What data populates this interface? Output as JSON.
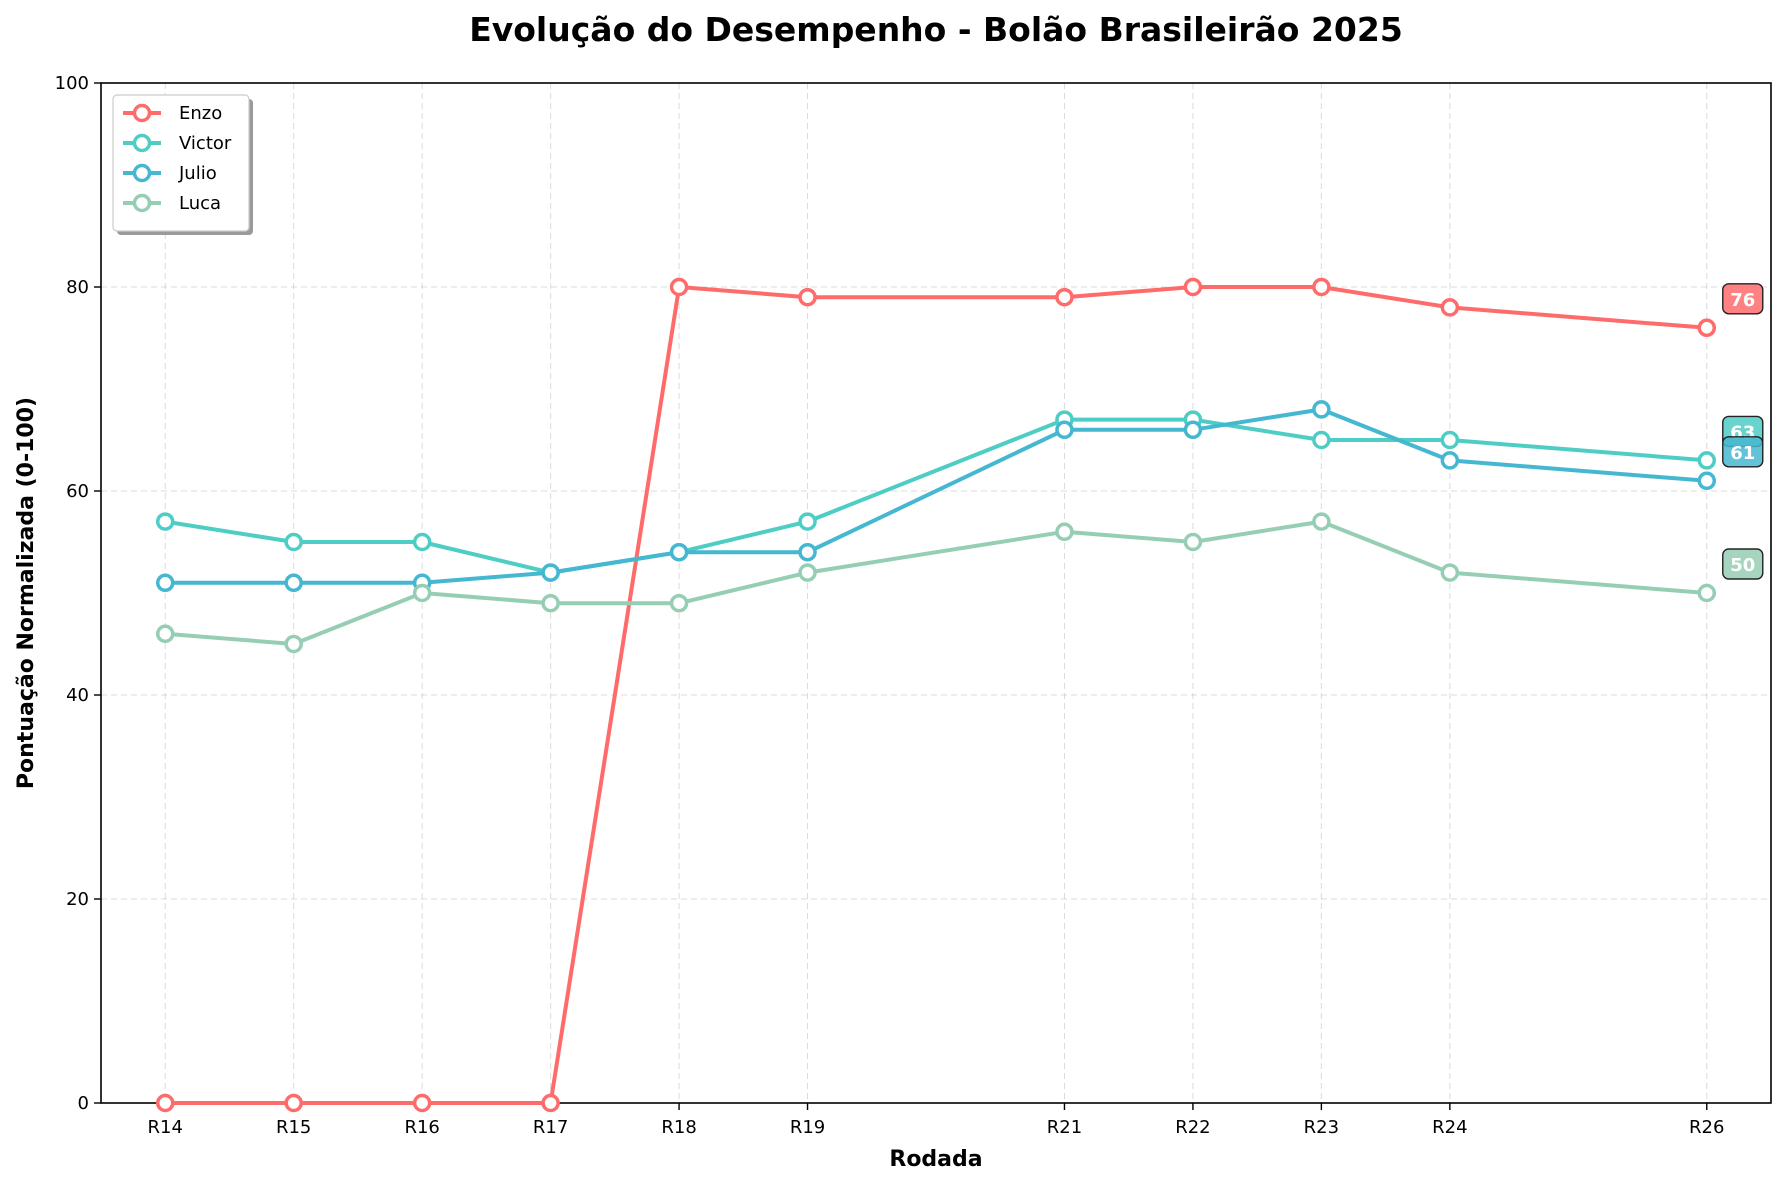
{
  "chart_data": {
    "type": "line",
    "title": "Evolução do Desempenho - Bolão Brasileirão 2025",
    "xlabel": "Rodada",
    "ylabel": "Pontuação Normalizada (0-100)",
    "x": [
      14,
      15,
      16,
      17,
      18,
      19,
      21,
      22,
      23,
      24,
      26
    ],
    "categories": [
      "R14",
      "R15",
      "R16",
      "R17",
      "R18",
      "R19",
      "R21",
      "R22",
      "R23",
      "R24",
      "R26"
    ],
    "xlim": [
      13.5,
      26.5
    ],
    "ylim": [
      0,
      100
    ],
    "yticks": [
      0,
      20,
      40,
      60,
      80,
      100
    ],
    "grid": true,
    "legend": "top-left",
    "series": [
      {
        "name": "Enzo",
        "color": "#FF6B6B",
        "values": [
          0,
          0,
          0,
          0,
          80,
          79,
          79,
          80,
          80,
          78,
          76
        ],
        "end_label": "76"
      },
      {
        "name": "Victor",
        "color": "#4ECDC4",
        "values": [
          57,
          55,
          55,
          52,
          54,
          57,
          67,
          67,
          65,
          65,
          63
        ],
        "end_label": "63"
      },
      {
        "name": "Julio",
        "color": "#45B7D1",
        "values": [
          51,
          51,
          51,
          52,
          54,
          54,
          66,
          66,
          68,
          63,
          61
        ],
        "end_label": "61"
      },
      {
        "name": "Luca",
        "color": "#96CEB4",
        "values": [
          46,
          45,
          50,
          49,
          49,
          52,
          56,
          55,
          57,
          52,
          50
        ],
        "end_label": "50"
      }
    ]
  }
}
